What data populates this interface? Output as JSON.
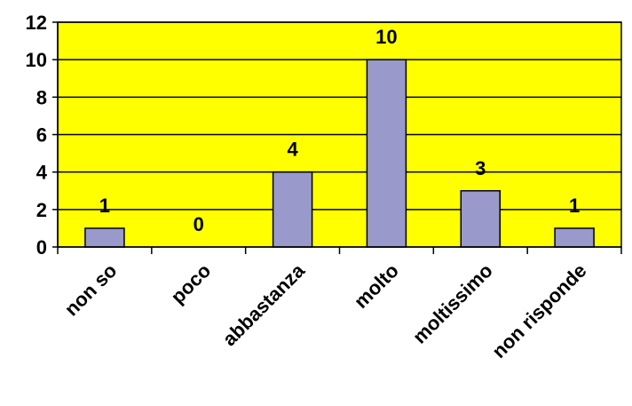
{
  "chart_data": {
    "type": "bar",
    "title": "",
    "xlabel": "",
    "ylabel": "",
    "categories": [
      "non so",
      "poco",
      "abbastanza",
      "molto",
      "moltissimo",
      "non risponde"
    ],
    "values": [
      1,
      0,
      4,
      10,
      3,
      1
    ],
    "data_labels": [
      "1",
      "0",
      "4",
      "10",
      "3",
      "1"
    ],
    "ylim": [
      0,
      12
    ],
    "yticks": [
      0,
      2,
      4,
      6,
      8,
      10,
      12
    ],
    "grid": "horizontal",
    "legend": "none",
    "colors": {
      "plot_background": "#ffff00",
      "bar_fill": "#9999cc",
      "bar_stroke": "#000000",
      "gridline": "#000000"
    }
  }
}
